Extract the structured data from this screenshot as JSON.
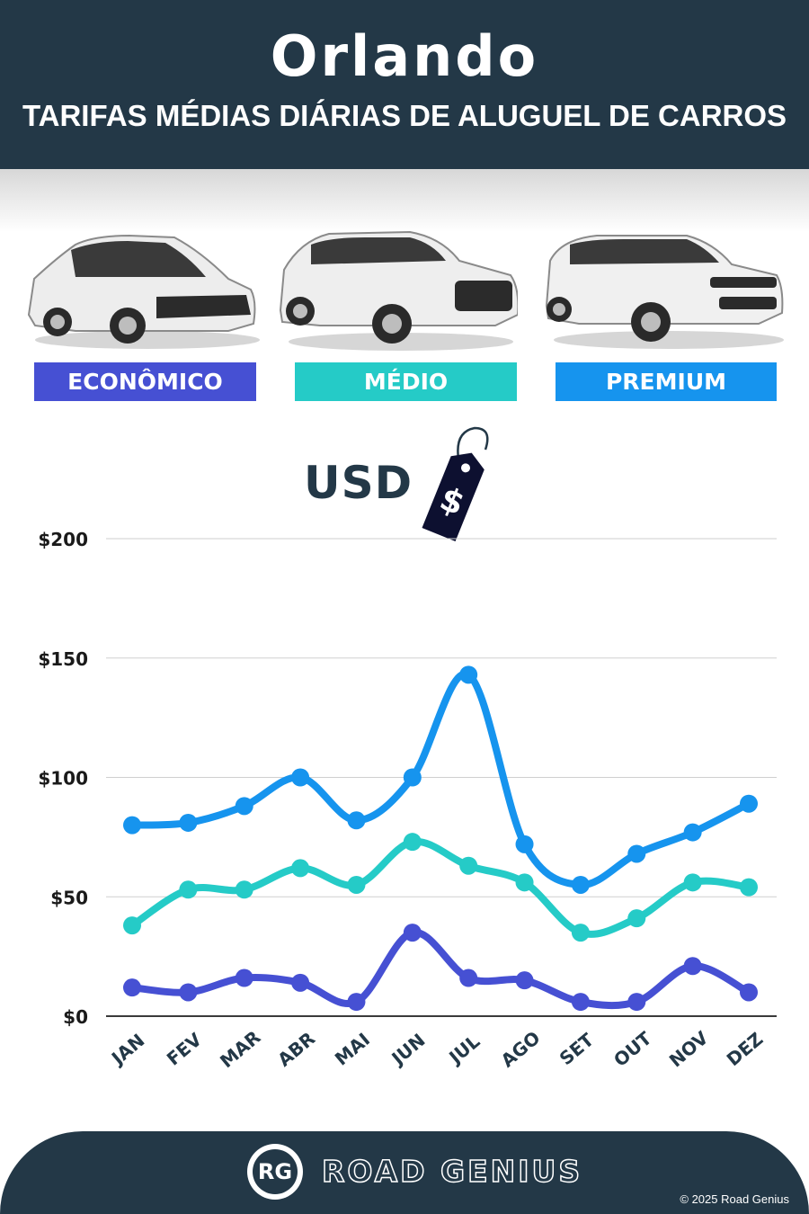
{
  "header": {
    "title": "Orlando",
    "subtitle": "TARIFAS MÉDIAS DIÁRIAS DE ALUGUEL DE CARROS"
  },
  "categories": [
    {
      "label": "ECONÔMICO",
      "color": "#4650d3",
      "car": "hatchback-car-image"
    },
    {
      "label": "MÉDIO",
      "color": "#25cbc7",
      "car": "suv-car-image"
    },
    {
      "label": "PREMIUM",
      "color": "#1694ee",
      "car": "luxury-suv-car-image"
    }
  ],
  "currency_label": "USD",
  "tag_icon": "price-tag-icon",
  "tag_symbol": "$",
  "chart_data": {
    "type": "line",
    "categories": [
      "JAN",
      "FEV",
      "MAR",
      "ABR",
      "MAI",
      "JUN",
      "JUL",
      "AGO",
      "SET",
      "OUT",
      "NOV",
      "DEZ"
    ],
    "series": [
      {
        "name": "PREMIUM",
        "color": "#1694ee",
        "values": [
          80,
          81,
          88,
          100,
          82,
          100,
          143,
          72,
          55,
          68,
          77,
          89
        ]
      },
      {
        "name": "MÉDIO",
        "color": "#25cbc7",
        "values": [
          38,
          53,
          53,
          62,
          55,
          73,
          63,
          56,
          35,
          41,
          56,
          54
        ]
      },
      {
        "name": "ECONÔMICO",
        "color": "#4650d3",
        "values": [
          12,
          10,
          16,
          14,
          6,
          35,
          16,
          15,
          6,
          6,
          21,
          10
        ]
      }
    ],
    "y_ticks": [
      "$0",
      "$50",
      "$100",
      "$150",
      "$200"
    ],
    "ylim": [
      0,
      200
    ],
    "grid": true
  },
  "footer": {
    "logo_text": "RG",
    "brand": "ROAD GENIUS",
    "copyright": "© 2025 Road Genius"
  }
}
